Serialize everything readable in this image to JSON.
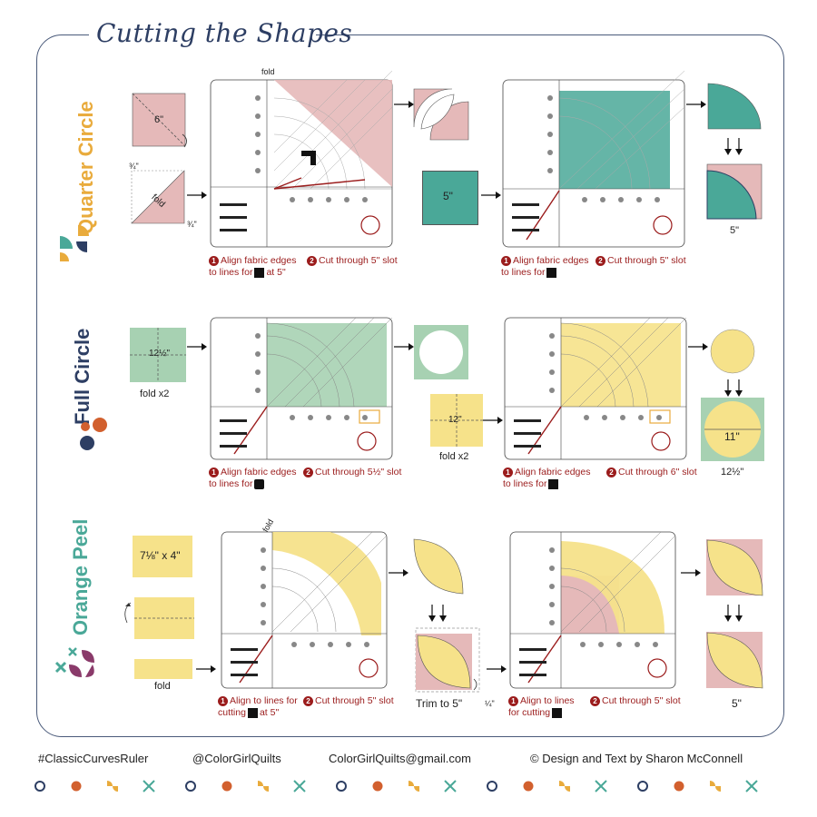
{
  "title": "Cutting the Shapes",
  "colors": {
    "pink": "#e5b9b9",
    "teal": "#4aa898",
    "green": "#a7d1b2",
    "yellow": "#f6e28a",
    "red": "#9b1c1c",
    "navy": "#2d3e63",
    "orange": "#d2602e",
    "gold": "#e9ab3c"
  },
  "sections": {
    "quarter_circle": {
      "label": "Quarter Circle",
      "square_size": "6\"",
      "fold_label": "fold",
      "three_quarter_a": "¾\"",
      "three_quarter_b": "¾\"",
      "ruler_fold": "fold",
      "step1_caption_line1": "Align fabric edges",
      "step1_caption_line2": "to lines for",
      "step1_caption_suffix": "at 5\"",
      "step2_caption": "Cut through 5\" slot",
      "teal_square": "5\"",
      "step3_caption_line1": "Align fabric edges",
      "step3_caption_line2": "to lines for",
      "step4_caption": "Cut through 5\" slot",
      "result_size": "5\""
    },
    "full_circle": {
      "label": "Full Circle",
      "square_size": "12½\"",
      "fold_label": "fold x2",
      "step1_caption_line1": "Align fabric edges",
      "step1_caption_line2": "to lines for",
      "step2_caption": "Cut through 5½\" slot",
      "yellow_square": "12\"",
      "yellow_fold": "fold x2",
      "step3_caption_line1": "Align fabric edges",
      "step3_caption_line2": "to lines for",
      "step4_caption": "Cut through 6\" slot",
      "circle_size": "11\"",
      "result_size": "12½\""
    },
    "orange_peel": {
      "label": "Orange Peel",
      "rect_size": "7⅛\" x 4\"",
      "fold_label": "fold",
      "ruler_fold": "fold",
      "step1_caption_line1": "Align to lines for",
      "step1_caption_line2": "cutting",
      "step1_caption_suffix": "at 5\"",
      "step2_caption": "Cut through 5\" slot",
      "trim_label": "Trim to 5\"",
      "quarter_label": "¼\"",
      "step3_caption_line1": "Align to lines",
      "step3_caption_line2": "for cutting",
      "step4_caption": "Cut through 5\" slot",
      "result_size": "5\""
    }
  },
  "step_numbers": [
    "1",
    "2"
  ],
  "footer": {
    "hashtag": "#ClassicCurvesRuler",
    "handle": "@ColorGirlQuilts",
    "email": "ColorGirlQuilts@gmail.com",
    "credit": "© Design and Text by Sharon McConnell"
  }
}
